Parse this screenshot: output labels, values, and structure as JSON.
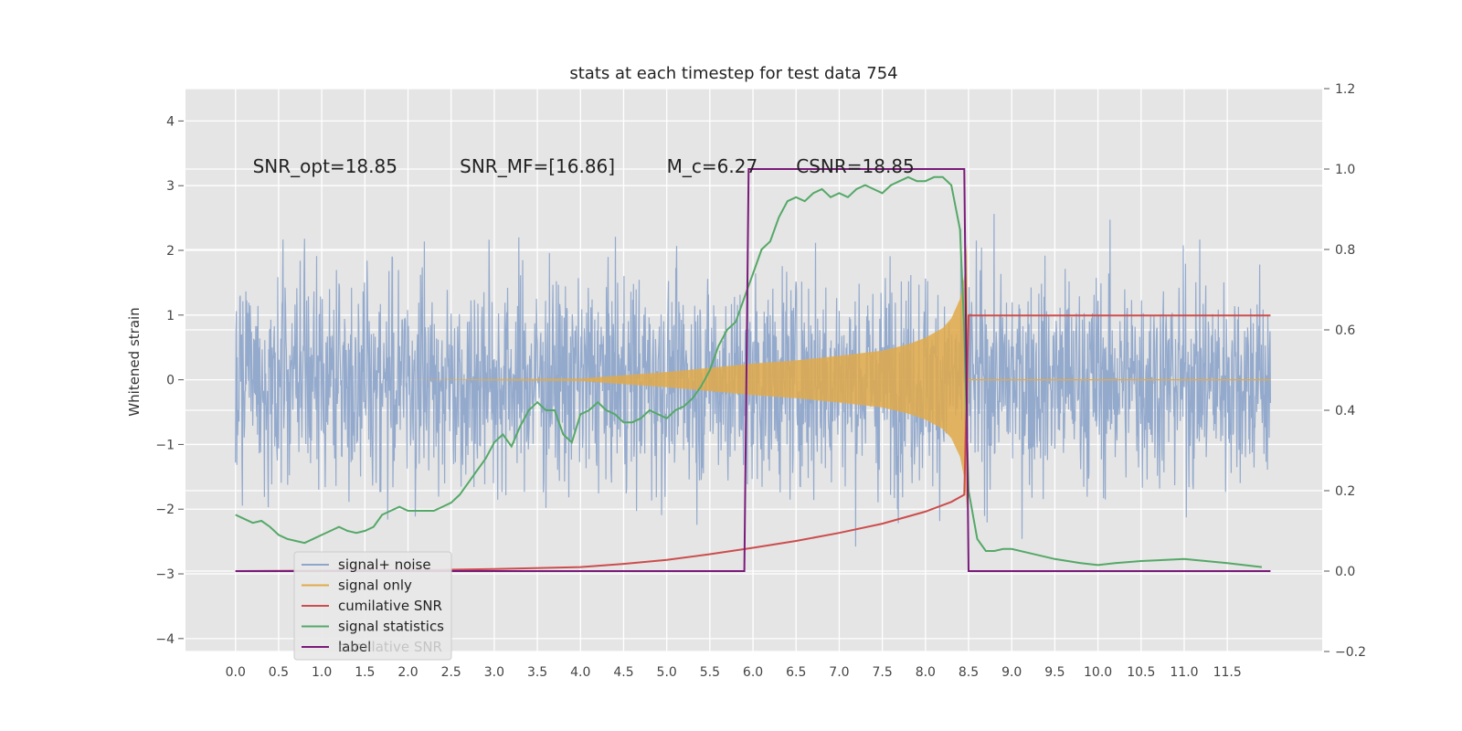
{
  "chart_data": {
    "type": "line",
    "title": "stats at each timestep for test data 754",
    "ylabel": "Whitened strain",
    "xlim": [
      -0.58,
      12.6
    ],
    "ylim": [
      -4.2,
      4.5
    ],
    "y2lim": [
      -0.2,
      1.2
    ],
    "x_ticks": [
      0.0,
      0.5,
      1.0,
      1.5,
      2.0,
      2.5,
      3.0,
      3.5,
      4.0,
      4.5,
      5.0,
      5.5,
      6.0,
      6.5,
      7.0,
      7.5,
      8.0,
      8.5,
      9.0,
      9.5,
      10.0,
      10.5,
      11.0,
      11.5
    ],
    "x_tick_labels": [
      "0.0",
      "0.5",
      "1.0",
      "1.5",
      "2.0",
      "2.5",
      "3.0",
      "3.5",
      "4.0",
      "4.5",
      "5.0",
      "5.5",
      "6.0",
      "6.5",
      "7.0",
      "7.5",
      "8.0",
      "8.5",
      "9.0",
      "9.5",
      "10.0",
      "10.5",
      "11.0",
      "11.5"
    ],
    "y_ticks": [
      -4,
      -3,
      -2,
      -1,
      0,
      1,
      2,
      3,
      4
    ],
    "y_tick_labels": [
      "−4",
      "−3",
      "−2",
      "−1",
      "0",
      "1",
      "2",
      "3",
      "4"
    ],
    "y2_ticks": [
      -0.2,
      0.0,
      0.2,
      0.4,
      0.6,
      0.8,
      1.0,
      1.2
    ],
    "y2_tick_labels": [
      "−0.2",
      "0.0",
      "0.2",
      "0.4",
      "0.6",
      "0.8",
      "1.0",
      "1.2"
    ],
    "grid": true,
    "annotations": [
      {
        "text": "SNR_opt=18.85",
        "x": 0.2,
        "y": 3.3
      },
      {
        "text": "SNR_MF=[16.86]",
        "x": 2.6,
        "y": 3.3
      },
      {
        "text": "M_c=6.27",
        "x": 5.0,
        "y": 3.3
      },
      {
        "text": "CSNR=18.85",
        "x": 6.5,
        "y": 3.3
      }
    ],
    "legend_position": "lower-left",
    "series": [
      {
        "name": "signal+ noise",
        "kind": "noise",
        "axis": "left",
        "color": "#8fa6cb",
        "x_range": [
          0.0,
          12.0
        ],
        "envelope_rms": 1.0
      },
      {
        "name": "signal only",
        "kind": "chirp",
        "axis": "left",
        "color": "#e1aa4a",
        "x": [
          0.0,
          2.0,
          4.0,
          5.0,
          6.0,
          6.5,
          7.0,
          7.5,
          7.8,
          8.0,
          8.2,
          8.3,
          8.4,
          8.45,
          8.48,
          8.5,
          12.0
        ],
        "amplitude": [
          0.0,
          0.0,
          0.02,
          0.12,
          0.25,
          0.3,
          0.37,
          0.45,
          0.55,
          0.65,
          0.8,
          0.95,
          1.25,
          1.6,
          2.1,
          0.0,
          0.0
        ]
      },
      {
        "name": "cumilative SNR",
        "axis": "right",
        "color": "#cc4d4d",
        "x": [
          0.0,
          2.0,
          3.0,
          4.0,
          4.5,
          5.0,
          5.5,
          6.0,
          6.5,
          7.0,
          7.5,
          8.0,
          8.3,
          8.45,
          8.5,
          12.0
        ],
        "y": [
          0.0,
          0.002,
          0.005,
          0.01,
          0.018,
          0.028,
          0.042,
          0.058,
          0.075,
          0.095,
          0.118,
          0.148,
          0.172,
          0.19,
          0.636,
          0.636
        ]
      },
      {
        "name": "signal statistics",
        "axis": "right",
        "color": "#55a868",
        "x": [
          0.0,
          0.1,
          0.2,
          0.3,
          0.4,
          0.5,
          0.6,
          0.7,
          0.8,
          0.9,
          1.0,
          1.1,
          1.2,
          1.3,
          1.4,
          1.5,
          1.6,
          1.7,
          1.8,
          1.9,
          2.0,
          2.1,
          2.2,
          2.3,
          2.4,
          2.5,
          2.6,
          2.7,
          2.8,
          2.9,
          3.0,
          3.1,
          3.2,
          3.3,
          3.4,
          3.5,
          3.6,
          3.7,
          3.8,
          3.9,
          4.0,
          4.1,
          4.2,
          4.3,
          4.4,
          4.5,
          4.6,
          4.7,
          4.8,
          4.9,
          5.0,
          5.1,
          5.2,
          5.3,
          5.4,
          5.5,
          5.6,
          5.7,
          5.8,
          5.9,
          6.0,
          6.1,
          6.2,
          6.3,
          6.4,
          6.5,
          6.6,
          6.7,
          6.8,
          6.9,
          7.0,
          7.1,
          7.2,
          7.3,
          7.4,
          7.5,
          7.6,
          7.7,
          7.8,
          7.9,
          8.0,
          8.1,
          8.2,
          8.3,
          8.4,
          8.45,
          8.5,
          8.6,
          8.7,
          8.8,
          8.9,
          9.0,
          9.2,
          9.5,
          9.8,
          10.0,
          10.2,
          10.5,
          11.0,
          11.5,
          11.9
        ],
        "y": [
          0.14,
          0.13,
          0.12,
          0.125,
          0.11,
          0.09,
          0.08,
          0.075,
          0.07,
          0.08,
          0.09,
          0.1,
          0.11,
          0.1,
          0.095,
          0.1,
          0.11,
          0.14,
          0.15,
          0.16,
          0.15,
          0.15,
          0.15,
          0.15,
          0.16,
          0.17,
          0.19,
          0.22,
          0.25,
          0.28,
          0.32,
          0.34,
          0.31,
          0.36,
          0.4,
          0.42,
          0.4,
          0.4,
          0.34,
          0.32,
          0.39,
          0.4,
          0.42,
          0.4,
          0.39,
          0.37,
          0.37,
          0.38,
          0.4,
          0.39,
          0.38,
          0.4,
          0.41,
          0.43,
          0.46,
          0.5,
          0.56,
          0.6,
          0.62,
          0.68,
          0.74,
          0.8,
          0.82,
          0.88,
          0.92,
          0.93,
          0.92,
          0.94,
          0.95,
          0.93,
          0.94,
          0.93,
          0.95,
          0.96,
          0.95,
          0.94,
          0.96,
          0.97,
          0.98,
          0.97,
          0.97,
          0.98,
          0.98,
          0.96,
          0.85,
          0.6,
          0.2,
          0.08,
          0.05,
          0.05,
          0.055,
          0.055,
          0.045,
          0.03,
          0.02,
          0.015,
          0.02,
          0.025,
          0.03,
          0.02,
          0.01
        ]
      },
      {
        "name": "label",
        "axis": "right",
        "color": "#7a1a7a",
        "x": [
          0.0,
          5.9,
          5.95,
          8.45,
          8.5,
          12.0
        ],
        "y": [
          0.0,
          0.0,
          1.0,
          1.0,
          0.0,
          0.0
        ]
      }
    ],
    "legend_overlap_text": "cumilative SNR"
  }
}
